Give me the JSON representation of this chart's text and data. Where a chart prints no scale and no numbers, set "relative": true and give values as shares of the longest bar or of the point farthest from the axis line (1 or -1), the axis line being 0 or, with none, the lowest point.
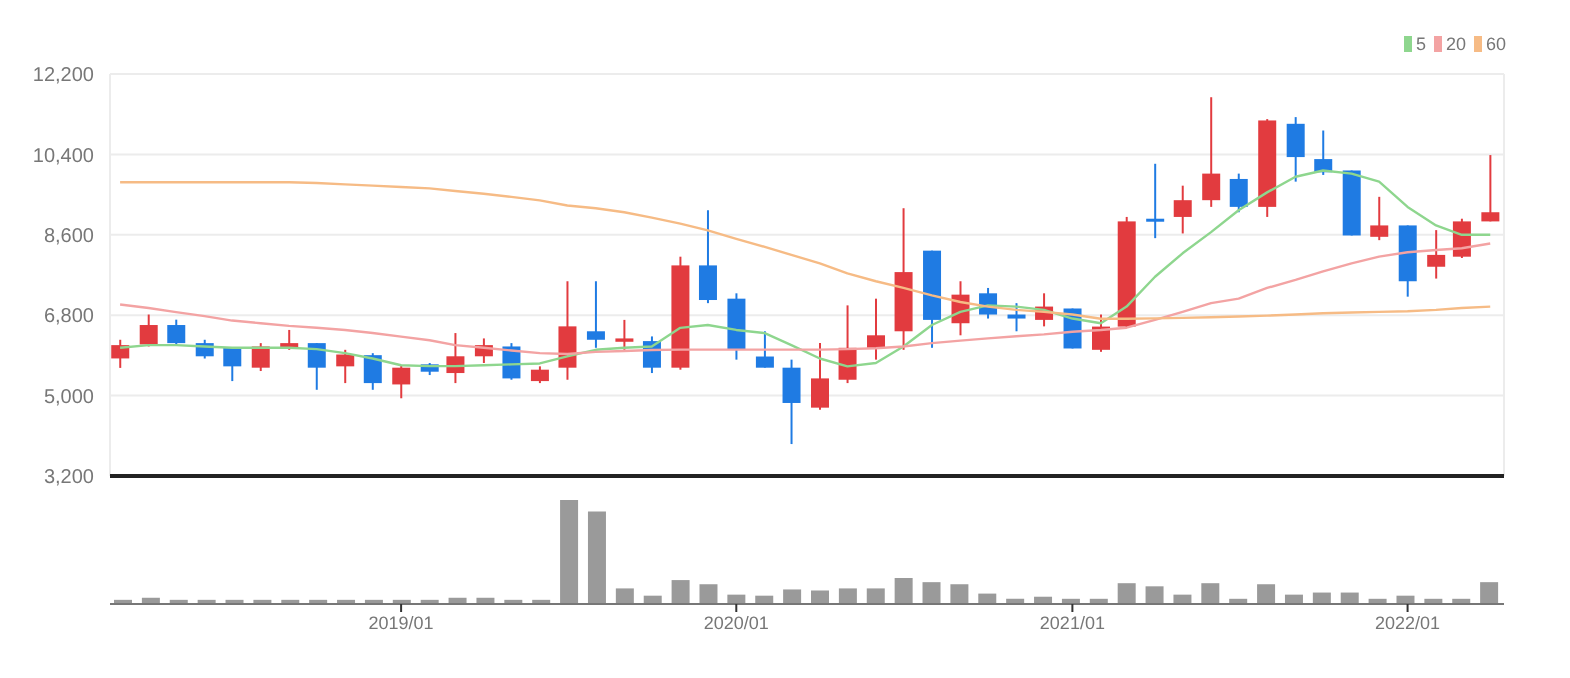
{
  "chart_data": [
    {
      "type": "candlestick",
      "x": [
        "2018-03",
        "2018-04",
        "2018-05",
        "2018-06",
        "2018-07",
        "2018-08",
        "2018-09",
        "2018-10",
        "2018-11",
        "2018-12",
        "2019-01",
        "2019-02",
        "2019-03",
        "2019-04",
        "2019-05",
        "2019-06",
        "2019-07",
        "2019-08",
        "2019-09",
        "2019-10",
        "2019-11",
        "2019-12",
        "2020-01",
        "2020-02",
        "2020-03",
        "2020-04",
        "2020-05",
        "2020-06",
        "2020-07",
        "2020-08",
        "2020-09",
        "2020-10",
        "2020-11",
        "2020-12",
        "2021-01",
        "2021-02",
        "2021-03",
        "2021-04",
        "2021-05",
        "2021-06",
        "2021-07",
        "2021-08",
        "2021-09",
        "2021-10",
        "2021-11",
        "2021-12",
        "2022-01",
        "2022-02",
        "2022-03",
        "2022-04"
      ],
      "ohlc": [
        [
          5832,
          6250,
          5620,
          6130
        ],
        [
          6145,
          6815,
          6100,
          6580
        ],
        [
          6580,
          6700,
          6130,
          6175
        ],
        [
          6175,
          6250,
          5830,
          5880
        ],
        [
          6070,
          6070,
          5325,
          5655
        ],
        [
          5625,
          6175,
          5550,
          6100
        ],
        [
          6070,
          6470,
          6025,
          6175
        ],
        [
          6175,
          6175,
          5130,
          5625
        ],
        [
          5655,
          6025,
          5280,
          5920
        ],
        [
          5905,
          5950,
          5130,
          5280
        ],
        [
          5250,
          5685,
          4940,
          5625
        ],
        [
          5700,
          5730,
          5460,
          5535
        ],
        [
          5505,
          6400,
          5280,
          5880
        ],
        [
          5880,
          6280,
          5730,
          6130
        ],
        [
          6100,
          6175,
          5355,
          5385
        ],
        [
          5325,
          5655,
          5280,
          5580
        ],
        [
          5625,
          7560,
          5355,
          6550
        ],
        [
          6440,
          7560,
          6070,
          6250
        ],
        [
          6205,
          6695,
          6025,
          6280
        ],
        [
          6220,
          6325,
          5505,
          5625
        ],
        [
          5625,
          8110,
          5580,
          7915
        ],
        [
          7915,
          9150,
          7070,
          7140
        ],
        [
          7170,
          7290,
          5805,
          6025
        ],
        [
          5875,
          6440,
          5625,
          5625
        ],
        [
          5625,
          5805,
          3915,
          4835
        ],
        [
          4730,
          6175,
          4685,
          5385
        ],
        [
          5355,
          7020,
          5280,
          6070
        ],
        [
          6070,
          7170,
          5805,
          6350
        ],
        [
          6440,
          9195,
          6025,
          7765
        ],
        [
          8245,
          8245,
          6070,
          6695
        ],
        [
          6620,
          7560,
          6350,
          7260
        ],
        [
          7290,
          7410,
          6725,
          6815
        ],
        [
          6815,
          7070,
          6440,
          6725
        ],
        [
          6695,
          7290,
          6550,
          6993
        ],
        [
          6950,
          6950,
          6055,
          6055
        ],
        [
          6025,
          6815,
          5980,
          6545
        ],
        [
          6545,
          9000,
          6520,
          8900
        ],
        [
          8960,
          10190,
          8525,
          8900
        ],
        [
          9000,
          9700,
          8630,
          9375
        ],
        [
          9375,
          11680,
          9225,
          9970
        ],
        [
          9850,
          9970,
          9105,
          9225
        ],
        [
          9225,
          11190,
          9000,
          11160
        ],
        [
          11085,
          11235,
          9790,
          10340
        ],
        [
          10295,
          10935,
          9940,
          10000
        ],
        [
          10040,
          10040,
          8585,
          8585
        ],
        [
          8555,
          9450,
          8480,
          8810
        ],
        [
          8810,
          8810,
          7215,
          7560
        ],
        [
          7885,
          8705,
          7620,
          8150
        ],
        [
          8110,
          8960,
          8080,
          8900
        ],
        [
          8900,
          10385,
          8900,
          9105
        ]
      ],
      "colors": [
        "#e23b3f",
        "#e23b3f",
        "#1f7be3",
        "#1f7be3",
        "#1f7be3",
        "#e23b3f",
        "#e23b3f",
        "#1f7be3",
        "#e23b3f",
        "#1f7be3",
        "#e23b3f",
        "#1f7be3",
        "#e23b3f",
        "#e23b3f",
        "#1f7be3",
        "#e23b3f",
        "#e23b3f",
        "#1f7be3",
        "#e23b3f",
        "#1f7be3",
        "#e23b3f",
        "#1f7be3",
        "#1f7be3",
        "#1f7be3",
        "#1f7be3",
        "#e23b3f",
        "#e23b3f",
        "#e23b3f",
        "#e23b3f",
        "#1f7be3",
        "#e23b3f",
        "#1f7be3",
        "#1f7be3",
        "#e23b3f",
        "#1f7be3",
        "#e23b3f",
        "#e23b3f",
        "#1f7be3",
        "#e23b3f",
        "#e23b3f",
        "#1f7be3",
        "#e23b3f",
        "#1f7be3",
        "#1f7be3",
        "#1f7be3",
        "#e23b3f",
        "#1f7be3",
        "#e23b3f",
        "#e23b3f",
        "#e23b3f"
      ],
      "series": [
        {
          "type": "line",
          "name": "5",
          "color": "#8ed68e",
          "values": [
            6070,
            6130,
            6130,
            6100,
            6070,
            6070,
            6070,
            6040,
            5950,
            5830,
            5680,
            5660,
            5660,
            5680,
            5700,
            5720,
            5880,
            6025,
            6070,
            6100,
            6517,
            6580,
            6470,
            6398,
            6130,
            5830,
            5655,
            5730,
            6100,
            6580,
            6875,
            7020,
            6993,
            6920,
            6725,
            6620,
            6993,
            7660,
            8185,
            8660,
            9150,
            9550,
            9900,
            10040,
            9970,
            9790,
            9225,
            8810,
            8600,
            8600
          ]
        },
        {
          "type": "line",
          "name": "20",
          "color": "#f3a3a3",
          "values": [
            7040,
            6960,
            6870,
            6780,
            6680,
            6620,
            6560,
            6520,
            6470,
            6400,
            6320,
            6240,
            6130,
            6070,
            6010,
            5950,
            5930,
            5980,
            6000,
            6020,
            6030,
            6030,
            6030,
            6030,
            6030,
            6030,
            6040,
            6060,
            6100,
            6175,
            6230,
            6280,
            6330,
            6370,
            6430,
            6470,
            6520,
            6695,
            6875,
            7070,
            7170,
            7410,
            7590,
            7780,
            7960,
            8110,
            8210,
            8260,
            8300,
            8405
          ]
        },
        {
          "type": "line",
          "name": "60",
          "color": "#f6bb85",
          "values": [
            9775,
            9775,
            9775,
            9775,
            9775,
            9775,
            9775,
            9760,
            9730,
            9700,
            9670,
            9640,
            9580,
            9520,
            9450,
            9370,
            9255,
            9195,
            9105,
            8985,
            8850,
            8700,
            8510,
            8330,
            8150,
            7960,
            7735,
            7560,
            7410,
            7245,
            7095,
            6993,
            6920,
            6875,
            6815,
            6720,
            6720,
            6730,
            6740,
            6755,
            6770,
            6790,
            6815,
            6845,
            6860,
            6875,
            6890,
            6920,
            6960,
            6993
          ]
        }
      ],
      "xlim": [
        "2018-02-18",
        "2022-04-16"
      ],
      "xticks": [
        {
          "value": "2019-01",
          "label": "2019/01"
        },
        {
          "value": "2020-01",
          "label": "2020/01"
        },
        {
          "value": "2021-01",
          "label": "2021/01"
        },
        {
          "value": "2022-01",
          "label": "2022/01"
        }
      ],
      "ylim": [
        3200,
        12200
      ],
      "yticks": [
        {
          "value": 3200,
          "label": "3,200"
        },
        {
          "value": 5000,
          "label": "5,000"
        },
        {
          "value": 6800,
          "label": "6,800"
        },
        {
          "value": 8600,
          "label": "8,600"
        },
        {
          "value": 10400,
          "label": "10,400"
        },
        {
          "value": 12200,
          "label": "12,200"
        }
      ],
      "grid": true,
      "legend": "top right",
      "tick_labels": "y"
    },
    {
      "type": "bar",
      "categories": [
        null,
        null,
        null,
        null,
        null,
        null,
        null,
        null,
        null,
        null,
        null,
        null,
        null,
        null,
        null,
        null,
        null,
        null,
        null,
        null,
        null,
        null,
        null,
        null,
        null,
        null,
        null,
        null,
        null,
        null,
        null,
        null,
        null,
        null,
        null,
        null,
        null,
        null,
        null,
        null,
        null,
        null,
        null,
        null,
        null,
        null,
        null,
        null,
        null,
        null
      ],
      "values": [
        0.04,
        0.06,
        0.04,
        0.04,
        0.04,
        0.04,
        0.04,
        0.04,
        0.04,
        0.04,
        0.04,
        0.04,
        0.06,
        0.06,
        0.04,
        0.04,
        1,
        0.89,
        0.15,
        0.08,
        0.23,
        0.19,
        0.09,
        0.08,
        0.14,
        0.13,
        0.15,
        0.15,
        0.25,
        0.21,
        0.19,
        0.1,
        0.05,
        0.07,
        0.05,
        0.05,
        0.2,
        0.17,
        0.09,
        0.2,
        0.05,
        0.19,
        0.09,
        0.11,
        0.11,
        0.05,
        0.08,
        0.05,
        0.05,
        0.21
      ],
      "color": "#9a9a9a",
      "relative": true
    }
  ]
}
